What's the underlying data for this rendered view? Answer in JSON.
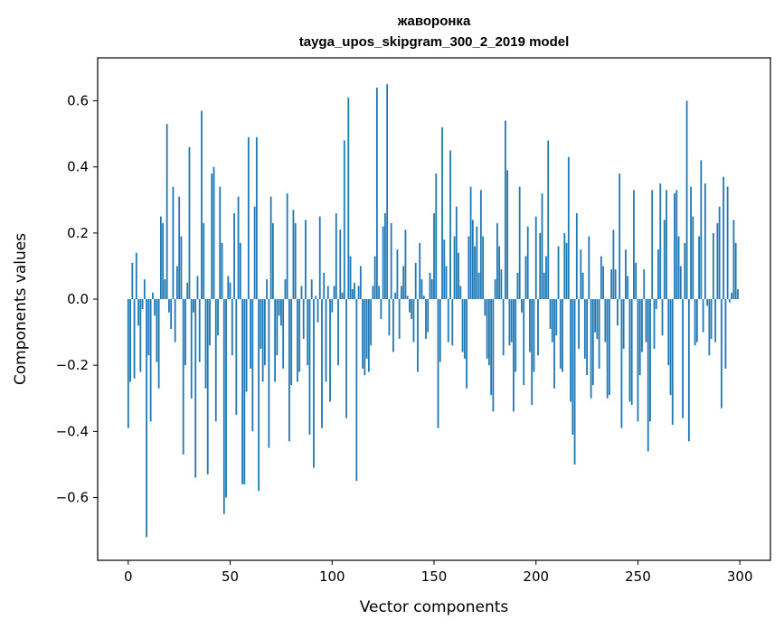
{
  "chart_data": {
    "type": "bar",
    "title": "жаворонка",
    "subtitle": "tayga_upos_skipgram_300_2_2019 model",
    "xlabel": "Vector components",
    "ylabel": "Components values",
    "xlim": [
      -15,
      315
    ],
    "ylim": [
      -0.79,
      0.73
    ],
    "x_ticks": [
      0,
      50,
      100,
      150,
      200,
      250,
      300
    ],
    "y_ticks": [
      -0.6,
      -0.4,
      -0.2,
      0.0,
      0.2,
      0.4,
      0.6
    ],
    "x_tick_labels": [
      "0",
      "50",
      "100",
      "150",
      "200",
      "250",
      "300"
    ],
    "y_tick_labels": [
      "−0.6",
      "−0.4",
      "−0.2",
      "0.0",
      "0.2",
      "0.4",
      "0.6"
    ],
    "bar_color": "#1f77b4",
    "values": [
      -0.39,
      -0.25,
      0.11,
      -0.24,
      0.14,
      -0.08,
      -0.22,
      -0.03,
      0.06,
      -0.72,
      -0.17,
      -0.37,
      0.02,
      -0.05,
      -0.19,
      -0.27,
      0.25,
      0.23,
      0.06,
      0.53,
      -0.04,
      -0.09,
      0.34,
      -0.13,
      0.1,
      0.31,
      0.19,
      -0.47,
      -0.2,
      0.05,
      0.46,
      -0.3,
      -0.04,
      -0.54,
      0.07,
      -0.19,
      0.57,
      0.23,
      -0.27,
      -0.53,
      -0.14,
      0.38,
      0.4,
      -0.37,
      -0.11,
      0.34,
      0.17,
      -0.65,
      -0.6,
      0.07,
      0.05,
      -0.17,
      0.26,
      -0.35,
      0.31,
      0.17,
      -0.56,
      -0.56,
      -0.28,
      0.49,
      -0.21,
      -0.4,
      0.28,
      0.49,
      -0.58,
      -0.15,
      -0.25,
      -0.2,
      0.06,
      -0.45,
      0.31,
      0.23,
      -0.25,
      -0.17,
      -0.05,
      -0.08,
      -0.21,
      0.06,
      0.32,
      -0.43,
      -0.26,
      0.27,
      0.23,
      -0.25,
      -0.22,
      0.04,
      -0.12,
      0.24,
      -0.2,
      -0.41,
      0.06,
      -0.51,
      0.01,
      -0.07,
      0.25,
      -0.39,
      0.08,
      -0.25,
      0.04,
      -0.31,
      -0.04,
      0.04,
      0.26,
      -0.2,
      0.21,
      0.02,
      0.48,
      -0.36,
      0.61,
      0.13,
      0.03,
      0.05,
      -0.55,
      0.04,
      0.1,
      -0.21,
      -0.23,
      -0.18,
      -0.22,
      -0.14,
      0.04,
      0.13,
      0.64,
      0.04,
      -0.06,
      0.22,
      0.26,
      0.65,
      -0.11,
      0.23,
      -0.16,
      0.02,
      0.15,
      -0.12,
      0.04,
      0.1,
      0.21,
      0.01,
      -0.04,
      -0.06,
      -0.13,
      0.11,
      -0.22,
      0.17,
      0.06,
      0.01,
      -0.12,
      -0.1,
      0.08,
      0.06,
      0.26,
      0.38,
      -0.39,
      -0.19,
      0.52,
      0.18,
      0.1,
      -0.13,
      0.45,
      -0.14,
      0.19,
      0.28,
      0.14,
      0.04,
      -0.16,
      -0.18,
      -0.27,
      0.19,
      0.34,
      0.24,
      0.16,
      0.22,
      0.08,
      0.33,
      0.19,
      -0.05,
      -0.18,
      -0.2,
      -0.29,
      -0.34,
      0.06,
      0.23,
      0.16,
      0.09,
      -0.17,
      0.54,
      0.39,
      -0.14,
      -0.13,
      -0.34,
      -0.22,
      0.08,
      0.34,
      -0.04,
      -0.26,
      0.13,
      0.22,
      -0.16,
      -0.32,
      -0.22,
      0.25,
      -0.17,
      0.2,
      0.32,
      0.08,
      0.13,
      0.48,
      -0.09,
      -0.13,
      -0.27,
      -0.11,
      0.16,
      -0.21,
      -0.22,
      0.2,
      0.17,
      0.43,
      -0.31,
      -0.41,
      -0.5,
      0.26,
      -0.15,
      0.15,
      0.08,
      -0.18,
      -0.23,
      0.19,
      -0.3,
      -0.26,
      -0.1,
      -0.12,
      -0.21,
      0.13,
      0.1,
      -0.13,
      -0.3,
      -0.29,
      0.09,
      0.21,
      0.09,
      -0.08,
      0.38,
      -0.39,
      -0.15,
      0.15,
      0.07,
      -0.31,
      -0.32,
      0.33,
      0.11,
      -0.37,
      -0.23,
      -0.16,
      0.09,
      -0.13,
      -0.46,
      -0.37,
      0.33,
      -0.15,
      -0.03,
      0.15,
      0.35,
      -0.11,
      0.24,
      0.33,
      -0.2,
      -0.29,
      -0.38,
      0.32,
      0.33,
      0.19,
      0.1,
      -0.36,
      0.17,
      0.6,
      -0.43,
      0.34,
      0.25,
      -0.14,
      -0.13,
      0.19,
      0.42,
      -0.1,
      0.35,
      -0.02,
      -0.17,
      -0.12,
      0.2,
      -0.13,
      0.23,
      0.28,
      -0.33,
      0.37,
      -0.21,
      0.34,
      -0.01,
      0.02,
      0.24,
      0.17,
      0.03
    ]
  }
}
